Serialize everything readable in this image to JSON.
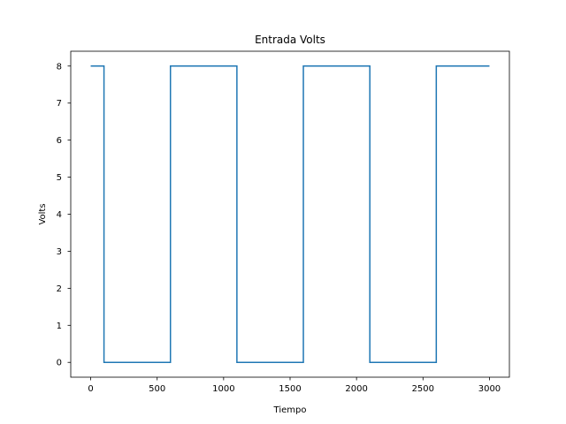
{
  "chart_data": {
    "type": "line",
    "title": "Entrada Volts",
    "xlabel": "Tiempo",
    "ylabel": "Volts",
    "xlim": [
      -150,
      3150
    ],
    "ylim": [
      -0.4,
      8.4
    ],
    "xticks": [
      0,
      500,
      1000,
      1500,
      2000,
      2500,
      3000
    ],
    "yticks": [
      0,
      1,
      2,
      3,
      4,
      5,
      6,
      7,
      8
    ],
    "grid": false,
    "line_style": "step",
    "series": [
      {
        "color": "#1f77b4",
        "x": [
          0,
          100,
          100,
          600,
          600,
          1100,
          1100,
          1600,
          1600,
          2100,
          2100,
          2600,
          2600,
          3000
        ],
        "y": [
          8,
          8,
          0,
          0,
          8,
          8,
          0,
          0,
          8,
          8,
          0,
          0,
          8,
          8
        ]
      }
    ]
  }
}
